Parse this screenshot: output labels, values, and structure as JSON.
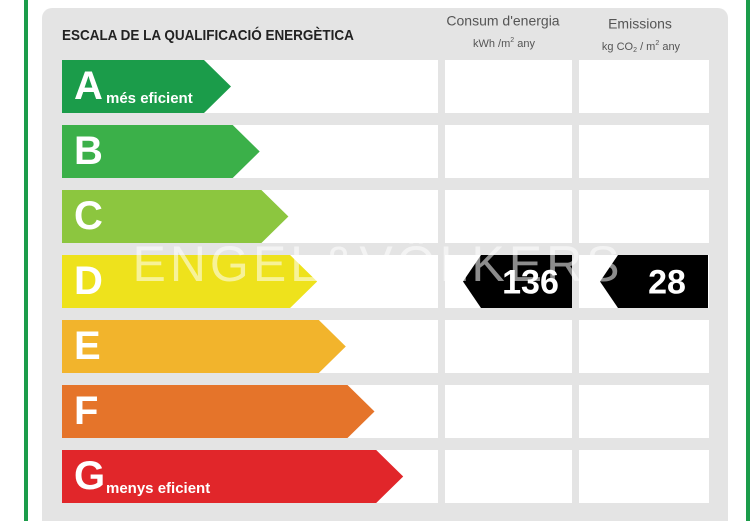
{
  "header": {
    "title": "ESCALA DE LA QUALIFICACIÓ ENERGÈTICA",
    "consumption": {
      "title": "Consum d'energia",
      "unit": [
        "kWh /m",
        "2",
        "  any"
      ]
    },
    "emissions": {
      "title": "Emissions",
      "unit": [
        "kg CO",
        "2",
        "  / m",
        "2",
        "  any"
      ]
    }
  },
  "rows": [
    {
      "letter": "A",
      "label": "més eficient",
      "color": "#1b9c4a"
    },
    {
      "letter": "B",
      "color": "#3bb049"
    },
    {
      "letter": "C",
      "color": "#8cc63f"
    },
    {
      "letter": "D",
      "color": "#eee21c",
      "consumption": 136,
      "emissions": 28
    },
    {
      "letter": "E",
      "color": "#f2b42c"
    },
    {
      "letter": "F",
      "color": "#e5742a"
    },
    {
      "letter": "G",
      "label": "menys eficient",
      "color": "#e1262a"
    }
  ],
  "watermark": "ENGEL&VÖLKERS"
}
